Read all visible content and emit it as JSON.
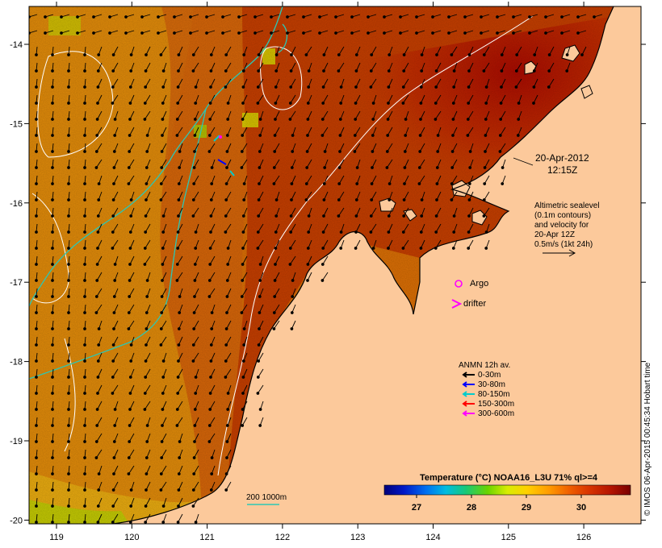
{
  "map": {
    "date": "20-Apr-2012",
    "time": "12:15Z",
    "altimetry_note_lines": [
      "Altimetric sealevel",
      "(0.1m contours)",
      "and velocity for",
      "20-Apr 12Z",
      "0.5m/s (1kt 24h)"
    ],
    "x_ticks": [
      "119",
      "120",
      "121",
      "122",
      "123",
      "124",
      "125",
      "126"
    ],
    "y_ticks": [
      "-14",
      "-15",
      "-16",
      "-17",
      "-18",
      "-19",
      "-20"
    ],
    "legend_argo": "Argo",
    "legend_drifter": "drifter",
    "anmn": {
      "title": "ANMN 12h av.",
      "items": [
        {
          "label": "0-30m",
          "color": "#000000"
        },
        {
          "label": "30-80m",
          "color": "#0000ff"
        },
        {
          "label": "80-150m",
          "color": "#00cccc"
        },
        {
          "label": "150-300m",
          "color": "#ff0000"
        },
        {
          "label": "300-600m",
          "color": "#ff00ff"
        }
      ]
    },
    "isobath_label": "200  1000m",
    "colorbar": {
      "title": "Temperature (°C) NOAA16_L3U 71% ql>=4",
      "ticks": [
        "27",
        "28",
        "29",
        "30"
      ]
    },
    "credit": "© IMOS 06-Apr-2015 00:45:34 Hobart time",
    "colors": {
      "land": "#fcc99b",
      "sea_warm": "#b81200",
      "sea_mid": "#d36200",
      "sea_cool": "#e08a0a",
      "contour_sealevel": "#ffffff",
      "isobath": "#2cc7b4",
      "marker": "#ff00ff"
    }
  }
}
